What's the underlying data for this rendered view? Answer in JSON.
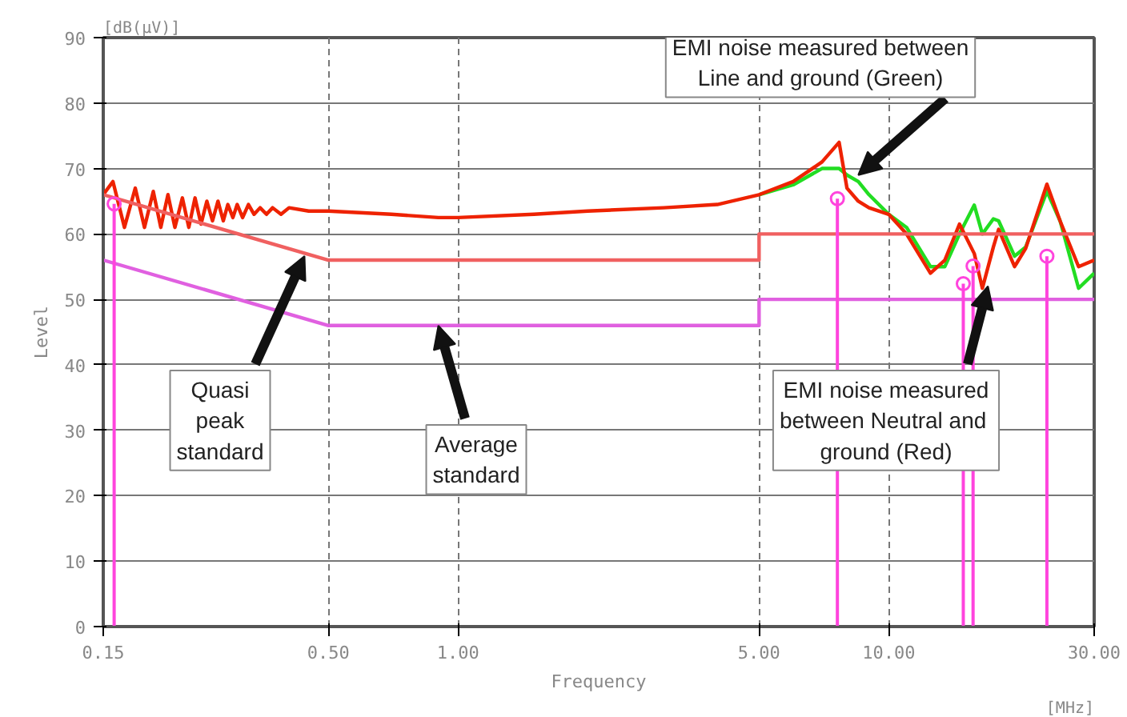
{
  "chart_data": {
    "type": "line",
    "xlabel": "Frequency",
    "ylabel": "Level",
    "log": "x",
    "grid": true,
    "line_style": "solid",
    "xlim": [
      0.15,
      30
    ],
    "ylim": [
      0,
      90
    ],
    "xticks": [
      0.15,
      {
        "value": 0.5,
        "label": "0.50"
      },
      {
        "value": 1,
        "label": "1.00"
      },
      {
        "value": 5,
        "label": "5.00"
      },
      {
        "value": 10,
        "label": "10.00"
      },
      {
        "value": 30,
        "label": "30.00"
      }
    ],
    "yticks": [
      0,
      10,
      20,
      30,
      40,
      50,
      60,
      70,
      80,
      90
    ],
    "x": [
      0.15,
      0.158,
      0.168,
      0.178,
      0.187,
      0.196,
      0.204,
      0.212,
      0.22,
      0.229,
      0.237,
      0.245,
      0.253,
      0.261,
      0.269,
      0.277,
      0.285,
      0.292,
      0.3,
      0.307,
      0.316,
      0.326,
      0.336,
      0.347,
      0.359,
      0.371,
      0.388,
      0.405,
      0.45,
      0.5,
      0.7,
      0.9,
      1.0,
      1.5,
      2,
      3,
      4,
      5,
      6,
      7,
      7.67,
      8,
      8.5,
      9,
      10,
      11,
      12.5,
      13.5,
      14.6,
      15.8,
      16.5,
      17.5,
      18,
      19.6,
      20.8,
      23.3,
      25,
      27.6,
      30
    ],
    "series": [
      {
        "color": "#22dd22",
        "values": [
          null,
          null,
          null,
          null,
          null,
          null,
          null,
          null,
          null,
          null,
          null,
          null,
          null,
          null,
          null,
          null,
          null,
          null,
          null,
          null,
          null,
          null,
          null,
          null,
          null,
          null,
          null,
          null,
          null,
          null,
          null,
          null,
          null,
          null,
          null,
          null,
          null,
          66,
          67.5,
          70,
          70,
          69,
          68,
          66,
          63,
          61,
          55,
          55,
          60,
          64.4,
          60,
          62.3,
          62,
          56.6,
          58,
          66.5,
          62,
          51.7,
          54
        ]
      },
      {
        "color": "#ee2200",
        "values": [
          66,
          68,
          61,
          67,
          61,
          66.5,
          61,
          66,
          61,
          65.5,
          61,
          65.5,
          61.5,
          65,
          62,
          65,
          62,
          64.5,
          62.5,
          64.5,
          62.5,
          64.5,
          63,
          64,
          63,
          64,
          63,
          64,
          63.5,
          63.5,
          63,
          62.5,
          62.5,
          63,
          63.5,
          64,
          64.5,
          66,
          68,
          71,
          74,
          67,
          65,
          64,
          63,
          60,
          54,
          56,
          61.5,
          57,
          51.7,
          58,
          60.7,
          55,
          57.8,
          67.6,
          62,
          55,
          56
        ]
      },
      {
        "color": "#f06060",
        "x": [
          0.15,
          0.5,
          5,
          5,
          30
        ],
        "values": [
          66,
          56,
          56,
          60,
          60
        ]
      },
      {
        "color": "#e060e0",
        "x": [
          0.15,
          0.5,
          5,
          5,
          30
        ],
        "values": [
          56,
          46,
          46,
          50,
          50
        ]
      },
      {
        "type": "lollipop",
        "color": "#ff44dd",
        "x": [
          0.159,
          7.6,
          14.9,
          15.7,
          23.3
        ],
        "values": [
          64.6,
          65.4,
          52.4,
          55.1,
          56.6
        ]
      }
    ],
    "annotations": [
      "[dB(μV)]",
      "[MHz]",
      {
        "text": "EMI noise measured between\nLine and ground (Green)",
        "x": 8.5,
        "y": 69
      },
      {
        "text": "Quasi\npeak\nstandard",
        "x": 0.44,
        "y": 56.6
      },
      {
        "text": "Average\nstandard",
        "x": 0.9,
        "y": 46
      },
      {
        "text": "EMI noise measured\nbetween Neutral  and\nground (Red)",
        "x": 17,
        "y": 52
      }
    ]
  }
}
